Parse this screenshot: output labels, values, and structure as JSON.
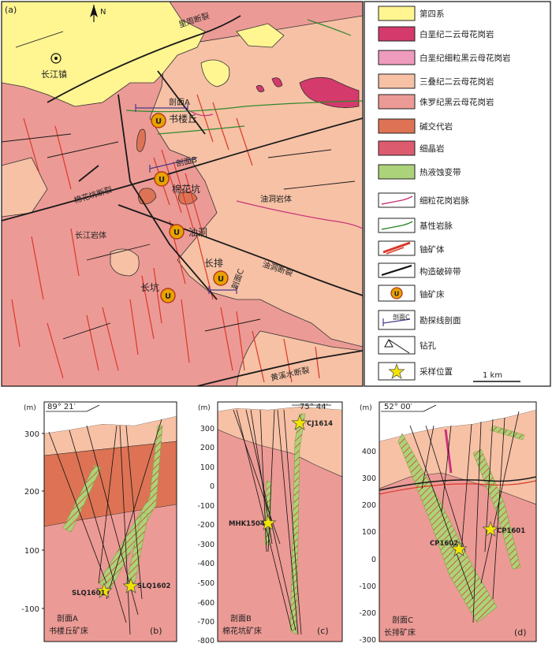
{
  "map": {
    "panel_label": "(a)",
    "north": "N",
    "scale": "1 km",
    "places": {
      "changjiang_town": "长江镇",
      "shulouqiu": "书楼丘",
      "mianhuakeng": "棉花坑",
      "youdong": "油洞",
      "changpai": "长排",
      "changkeng": "长坑",
      "changjiang_pluton": "长江岩体",
      "youdong_pluton": "油洞岩体"
    },
    "faults": {
      "lidong": "里周断裂",
      "mianhuakeng": "棉花坑断裂",
      "youdong": "油洞断裂",
      "huangxishui": "黄溪水断裂"
    },
    "profiles": {
      "a": "剖面A",
      "b": "剖面B",
      "c": "剖面C"
    },
    "uranium_symbol": "U",
    "colors": {
      "quaternary": "#fff591",
      "cretaceous_twomica": "#d43a6b",
      "cretaceous_finebiotite": "#ef9bbd",
      "triassic_twomica": "#f7c1a5",
      "jurassic_biotite": "#ec9a95",
      "alkali_metasomatite": "#dd7354",
      "aplite": "#dc5b6e",
      "hydrothermal_zone": "#acd27a",
      "fine_granite_vein": "#c8357a",
      "basic_vein": "#2f8a2f",
      "ore_body": "#d93a2a",
      "fracture_zone": "#1a1a1a",
      "deposit": "#e8a300"
    }
  },
  "legend": {
    "items": [
      {
        "label": "第四系"
      },
      {
        "label": "白垩纪二云母花岗岩"
      },
      {
        "label": "白垩纪细粒黑云母花岗岩"
      },
      {
        "label": "三叠纪二云母花岗岩"
      },
      {
        "label": "侏罗纪黑云母花岗岩"
      },
      {
        "label": "碱交代岩"
      },
      {
        "label": "细晶岩"
      },
      {
        "label": "热液蚀变带"
      },
      {
        "label": "细粒花岗岩脉"
      },
      {
        "label": "基性岩脉"
      },
      {
        "label": "铀矿体"
      },
      {
        "label": "构造破碎带"
      },
      {
        "label": "铀矿床"
      },
      {
        "label": "勘探线剖面"
      },
      {
        "label": "钻孔"
      },
      {
        "label": "采样位置"
      }
    ],
    "profile_symbol_text": "剖面C",
    "uranium_symbol": "U"
  },
  "sections": {
    "b": {
      "unit": "(m)",
      "azimuth": "89° 21′",
      "ticks": [
        "300",
        "200",
        "100",
        "-100"
      ],
      "name": "剖面A",
      "deposit": "书楼丘矿床",
      "panel": "(b)",
      "samples": [
        "SLQ1601",
        "SLQ1602"
      ]
    },
    "c": {
      "unit": "(m)",
      "azimuth": "75° 44′",
      "ticks": [
        "300",
        "200",
        "100",
        "0",
        "-100",
        "-200",
        "-300",
        "-400",
        "-500",
        "-600",
        "-700",
        "-800"
      ],
      "name": "剖面B",
      "deposit": "棉花坑矿床",
      "panel": "(c)",
      "samples": [
        "CJ1614",
        "MHK1504"
      ]
    },
    "d": {
      "unit": "(m)",
      "azimuth": "52° 00′",
      "ticks": [
        "400",
        "300",
        "200",
        "100",
        "0",
        "-100",
        "-200",
        "-300"
      ],
      "name": "剖面C",
      "deposit": "长排矿床",
      "panel": "(d)",
      "samples": [
        "CP1602",
        "CP1601"
      ]
    }
  }
}
